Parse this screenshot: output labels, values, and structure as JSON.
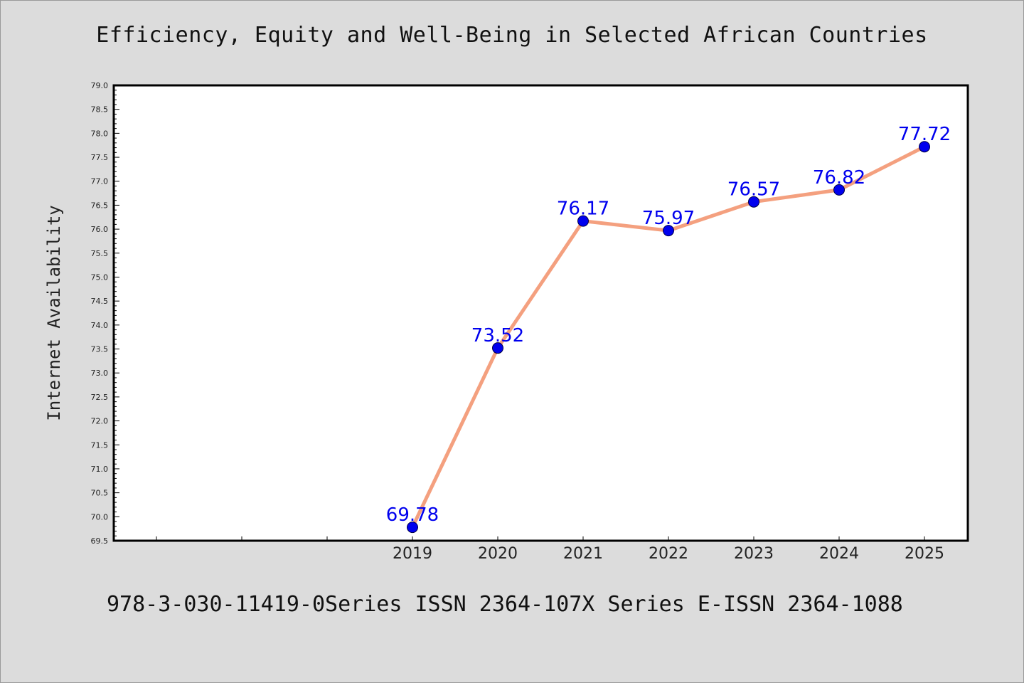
{
  "title": "Efficiency, Equity and Well-Being in Selected African Countries",
  "footer_text": "978-3-030-11419-0Series ISSN 2364-107X Series E-ISSN 2364-1088",
  "chart_data": {
    "type": "line",
    "title": "Efficiency, Equity and Well-Being in Selected African Countries",
    "xlabel": "",
    "ylabel": "Internet Availability",
    "x": [
      "2019",
      "2020",
      "2021",
      "2022",
      "2023",
      "2024",
      "2025"
    ],
    "series": [
      {
        "values": [
          69.78,
          73.52,
          76.17,
          75.97,
          76.57,
          76.82,
          77.72
        ],
        "line_color": "#f4a07f",
        "marker_color": "#0000ee",
        "label_color": "#0000ee"
      }
    ],
    "data_labels": [
      "69.78",
      "73.52",
      "76.17",
      "75.97",
      "76.57",
      "76.82",
      "77.72"
    ],
    "ylim": [
      69.5,
      79.0
    ],
    "yticks": [
      "69.5",
      "70.0",
      "70.5",
      "71.0",
      "71.5",
      "72.0",
      "72.5",
      "73.0",
      "73.5",
      "74.0",
      "74.5",
      "75.0",
      "75.5",
      "76.0",
      "76.5",
      "77.0",
      "77.5",
      "78.0",
      "78.5",
      "79.0"
    ],
    "grid": false,
    "legend": "none",
    "plot_background": "#ffffff",
    "page_background": "#dcdcdc"
  }
}
